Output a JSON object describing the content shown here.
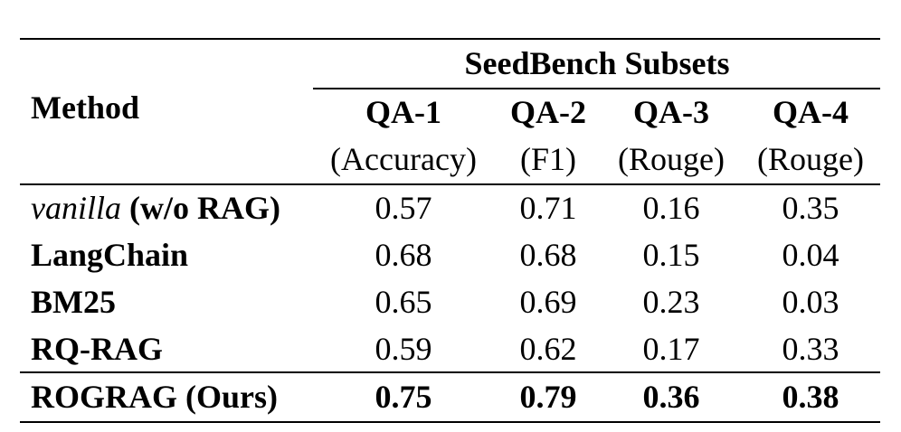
{
  "table": {
    "group_header": "SeedBench Subsets",
    "method_header": "Method",
    "columns": [
      {
        "name": "QA-1",
        "metric": "(Accuracy)"
      },
      {
        "name": "QA-2",
        "metric": "(F1)"
      },
      {
        "name": "QA-3",
        "metric": "(Rouge)"
      },
      {
        "name": "QA-4",
        "metric": "(Rouge)"
      }
    ],
    "rows": [
      {
        "method_italic": "vanilla",
        "method_rest": " (w/o RAG)",
        "values": [
          "0.57",
          "0.71",
          "0.16",
          "0.35"
        ]
      },
      {
        "method": "LangChain",
        "values": [
          "0.68",
          "0.68",
          "0.15",
          "0.04"
        ]
      },
      {
        "method": "BM25",
        "values": [
          "0.65",
          "0.69",
          "0.23",
          "0.03"
        ]
      },
      {
        "method": "RQ-RAG",
        "values": [
          "0.59",
          "0.62",
          "0.17",
          "0.33"
        ]
      },
      {
        "method": "ROGRAG (Ours)",
        "values": [
          "0.75",
          "0.79",
          "0.36",
          "0.38"
        ]
      }
    ]
  }
}
